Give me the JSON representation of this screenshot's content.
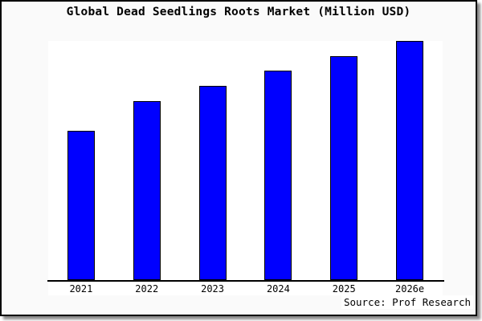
{
  "title": "Global Dead Seedlings Roots Market (Million USD)",
  "source_credit": "Source: Prof Research",
  "colors": {
    "bar_fill": "#0000ff",
    "bar_border": "#000000",
    "plot_background": "#ffffff",
    "panel_background": "#fafafa",
    "frame": "#000000",
    "text": "#000000"
  },
  "chart_data": {
    "type": "bar",
    "title": "Global Dead Seedlings Roots Market (Million USD)",
    "categories": [
      "2021",
      "2022",
      "2023",
      "2024",
      "2025",
      "2026e"
    ],
    "values": [
      62.5,
      74.9,
      81.3,
      87.6,
      93.7,
      100
    ],
    "xlabel": "",
    "ylabel": "",
    "ylim": [
      0,
      100
    ],
    "grid": false,
    "legend": false,
    "y_axis_ticks_visible": false,
    "annotations": [
      "Source: Prof Research"
    ],
    "note": "No y-axis scale is shown in the image; values are relative bar heights as a percentage of the tallest (2026e) bar."
  }
}
